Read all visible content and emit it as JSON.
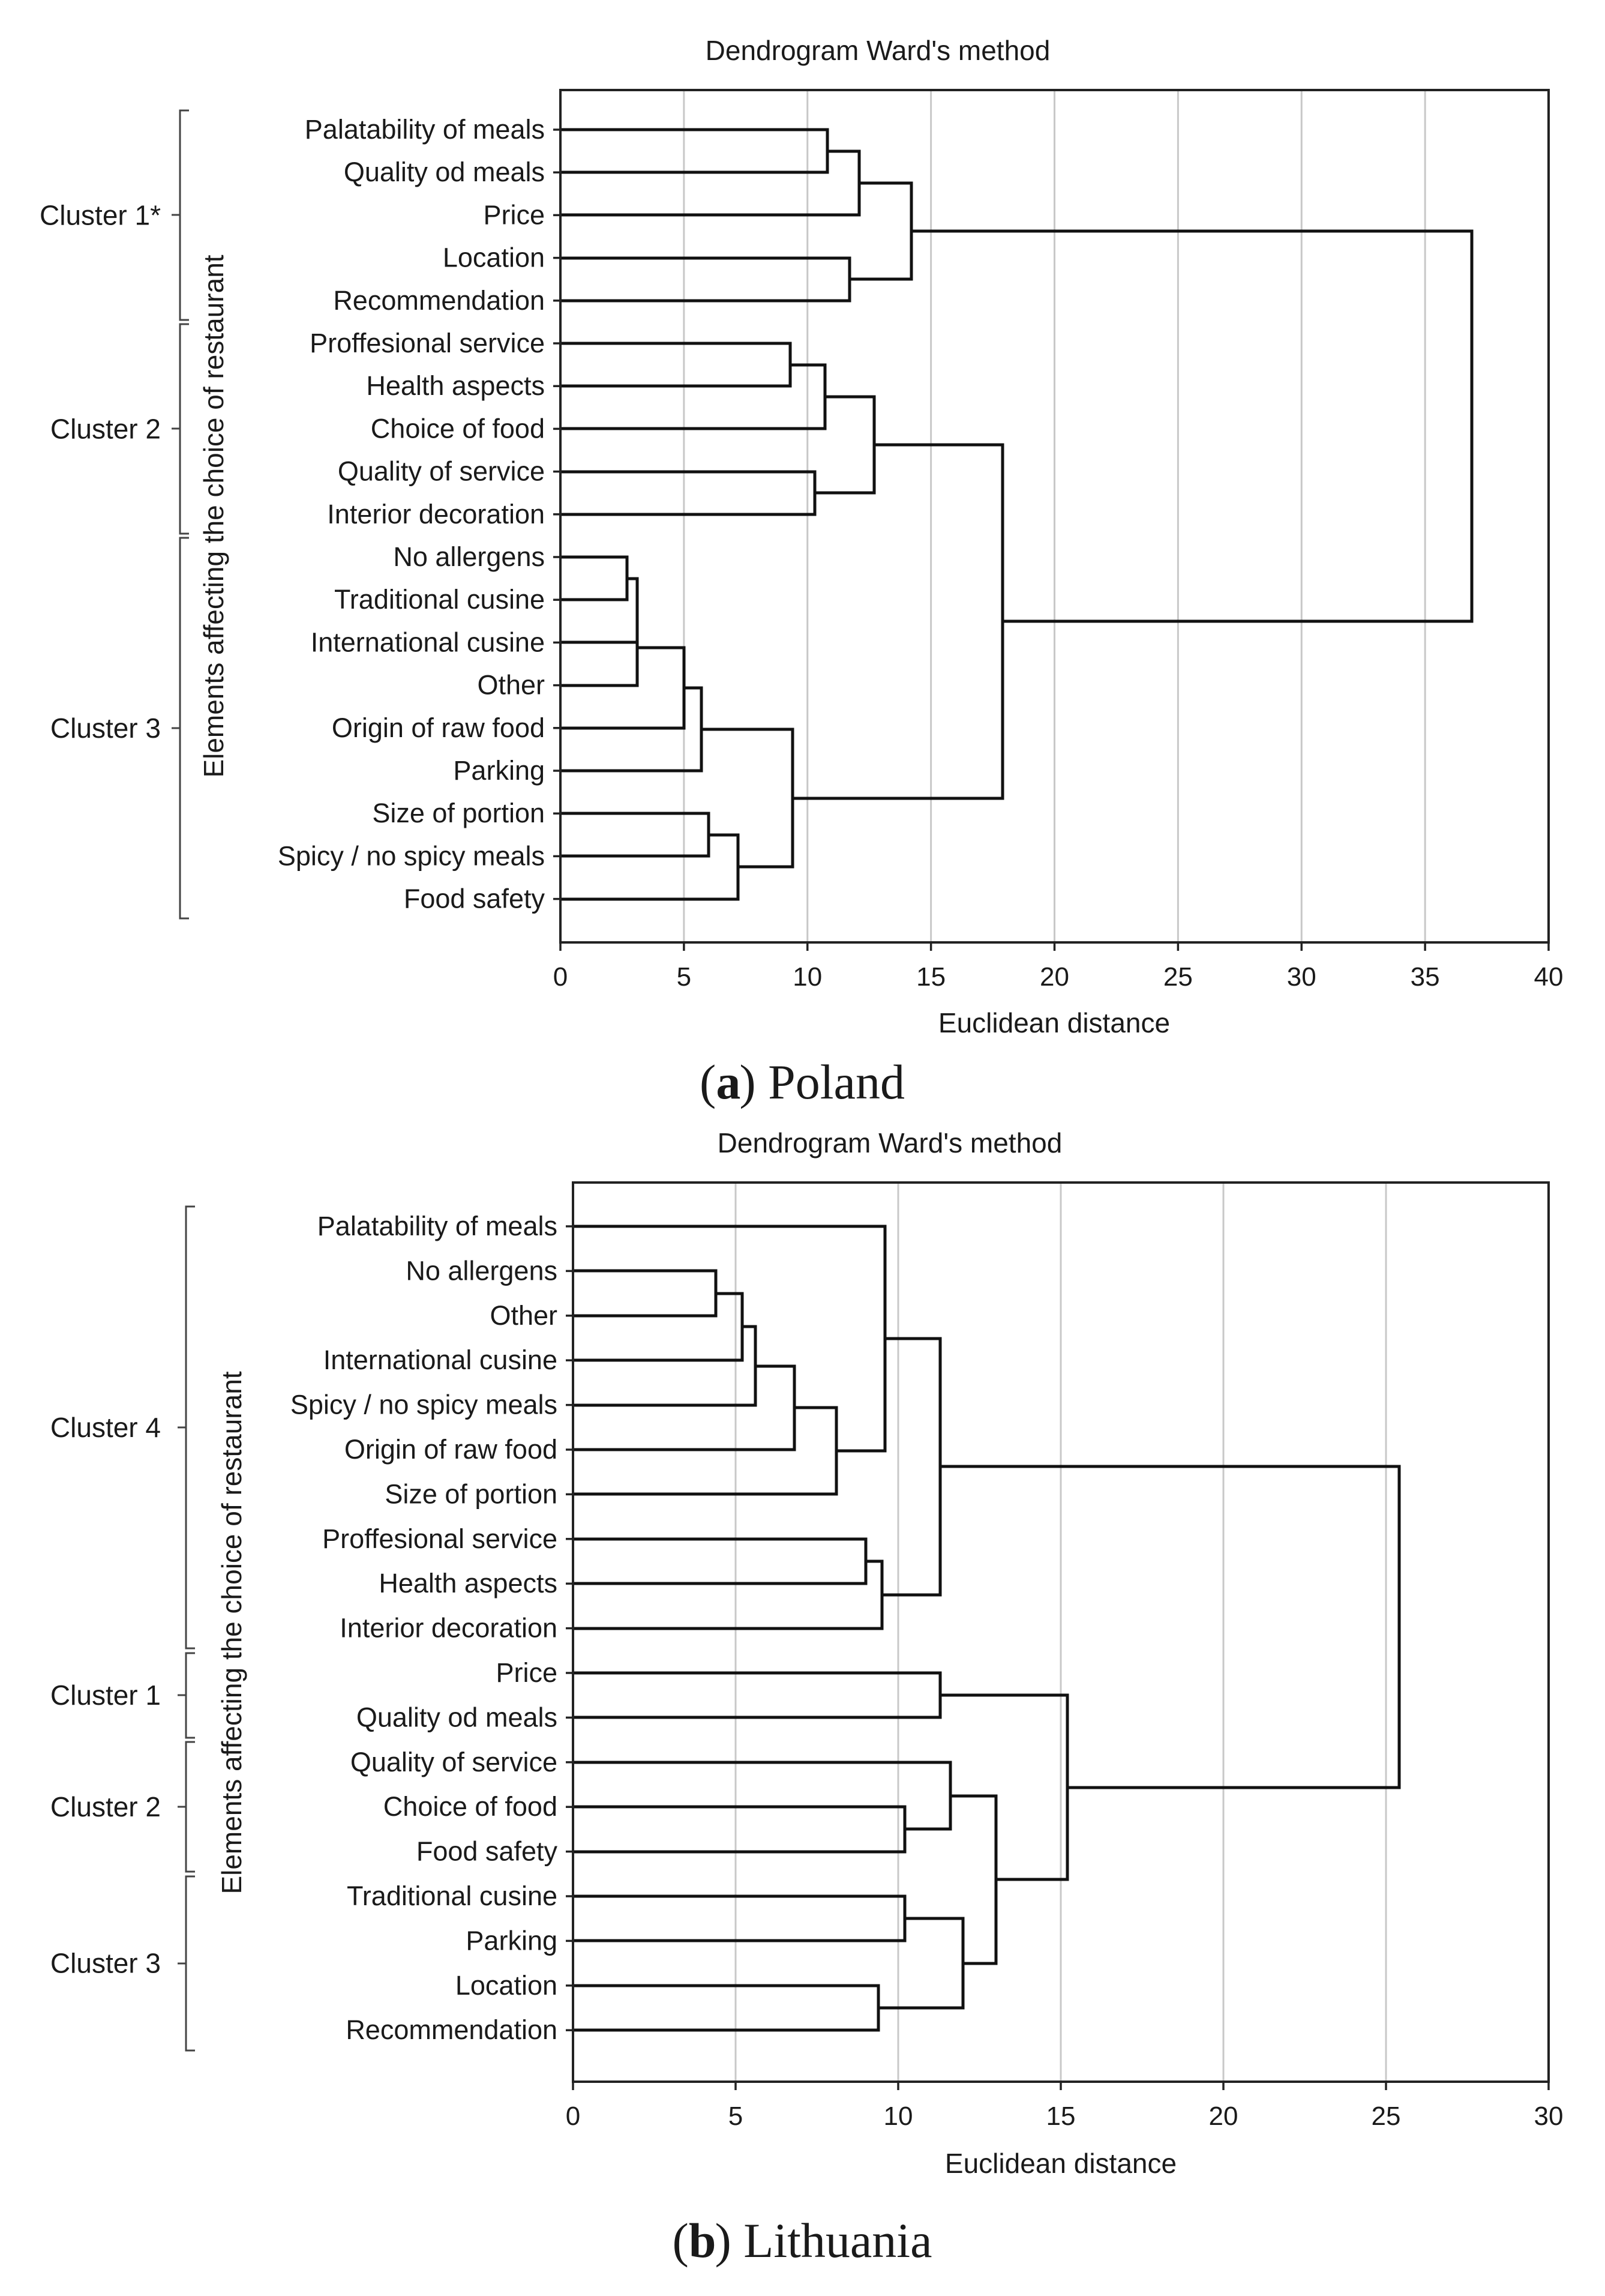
{
  "chart_data": [
    {
      "type": "dendrogram",
      "panel_id": "a",
      "caption": {
        "letter": "a",
        "country": "Poland"
      },
      "title": "Dendrogram Ward's method",
      "xlabel": "Euclidean distance",
      "ylabel": "Elements affecting the choice of restaurant",
      "xlim": [
        0,
        40
      ],
      "xticks": [
        0,
        5,
        10,
        15,
        20,
        25,
        30,
        35,
        40
      ],
      "leaves": [
        "Palatability of meals",
        "Quality od meals",
        "Price",
        "Location",
        "Recommendation",
        "Proffesional service",
        "Health aspects",
        "Choice of food",
        "Quality of service",
        "Interior decoration",
        "No allergens",
        "Traditional cusine",
        "International cusine",
        "Other",
        "Origin of raw food",
        "Parking",
        "Size of portion",
        "Spicy / no spicy meals",
        "Food safety"
      ],
      "merges": [
        {
          "a": 10,
          "b": 11,
          "height": 2.7
        },
        {
          "a": "m0",
          "b": 12,
          "height": 3.1
        },
        {
          "a": "m1",
          "b": 13,
          "height": 3.1
        },
        {
          "a": "m2",
          "b": 14,
          "height": 5.0
        },
        {
          "a": "m3",
          "b": 15,
          "height": 5.7
        },
        {
          "a": 16,
          "b": 17,
          "height": 6.0
        },
        {
          "a": "m5",
          "b": 18,
          "height": 7.2
        },
        {
          "a": "m4",
          "b": "m6",
          "height": 9.4
        },
        {
          "a": 5,
          "b": 6,
          "height": 9.3
        },
        {
          "a": "m8",
          "b": 7,
          "height": 10.7
        },
        {
          "a": 8,
          "b": 9,
          "height": 10.3
        },
        {
          "a": "m9",
          "b": "m10",
          "height": 12.7
        },
        {
          "a": "m11",
          "b": "m7",
          "height": 17.9
        },
        {
          "a": 0,
          "b": 1,
          "height": 10.8
        },
        {
          "a": "m13",
          "b": 2,
          "height": 12.1
        },
        {
          "a": 3,
          "b": 4,
          "height": 11.7
        },
        {
          "a": "m14",
          "b": "m15",
          "height": 14.2
        },
        {
          "a": "m16",
          "b": "m12",
          "height": 36.9
        }
      ],
      "clusters": [
        {
          "label": "Cluster 1*",
          "from": 0,
          "to": 4
        },
        {
          "label": "Cluster 2",
          "from": 5,
          "to": 9
        },
        {
          "label": "Cluster 3",
          "from": 10,
          "to": 18
        }
      ]
    },
    {
      "type": "dendrogram",
      "panel_id": "b",
      "caption": {
        "letter": "b",
        "country": "Lithuania"
      },
      "title": "Dendrogram Ward's method",
      "xlabel": "Euclidean distance",
      "ylabel": "Elements affecting the choice of restaurant",
      "xlim": [
        0,
        30
      ],
      "xticks": [
        0,
        5,
        10,
        15,
        20,
        25,
        30
      ],
      "leaves": [
        "Palatability of meals",
        "No allergens",
        "Other",
        "International cusine",
        "Spicy / no spicy meals",
        "Origin of raw food",
        "Size of portion",
        "Proffesional service",
        "Health aspects",
        "Interior decoration",
        "Price",
        "Quality od meals",
        "Quality of service",
        "Choice of food",
        "Food safety",
        "Traditional cusine",
        "Parking",
        "Location",
        "Recommendation"
      ],
      "merges": [
        {
          "a": 1,
          "b": 2,
          "height": 4.4
        },
        {
          "a": "m0",
          "b": 3,
          "height": 5.2
        },
        {
          "a": "m1",
          "b": 4,
          "height": 5.6
        },
        {
          "a": "m2",
          "b": 5,
          "height": 6.8
        },
        {
          "a": "m3",
          "b": 6,
          "height": 8.1
        },
        {
          "a": 0,
          "b": "m4",
          "height": 9.6
        },
        {
          "a": 7,
          "b": 8,
          "height": 9.0
        },
        {
          "a": "m6",
          "b": 9,
          "height": 9.5
        },
        {
          "a": "m5",
          "b": "m7",
          "height": 11.3
        },
        {
          "a": 10,
          "b": 11,
          "height": 11.3
        },
        {
          "a": 13,
          "b": 14,
          "height": 10.2
        },
        {
          "a": 12,
          "b": "m10",
          "height": 11.6
        },
        {
          "a": 15,
          "b": 16,
          "height": 10.2
        },
        {
          "a": 17,
          "b": 18,
          "height": 9.4
        },
        {
          "a": "m12",
          "b": "m13",
          "height": 12.0
        },
        {
          "a": "m11",
          "b": "m14",
          "height": 13.0
        },
        {
          "a": "m9",
          "b": "m15",
          "height": 15.2
        },
        {
          "a": "m8",
          "b": "m16",
          "height": 25.4
        }
      ],
      "clusters": [
        {
          "label": "Cluster 4",
          "from": 0,
          "to": 9
        },
        {
          "label": "Cluster 1",
          "from": 10,
          "to": 11
        },
        {
          "label": "Cluster 2",
          "from": 12,
          "to": 14
        },
        {
          "label": "Cluster 3",
          "from": 15,
          "to": 18
        }
      ]
    }
  ]
}
